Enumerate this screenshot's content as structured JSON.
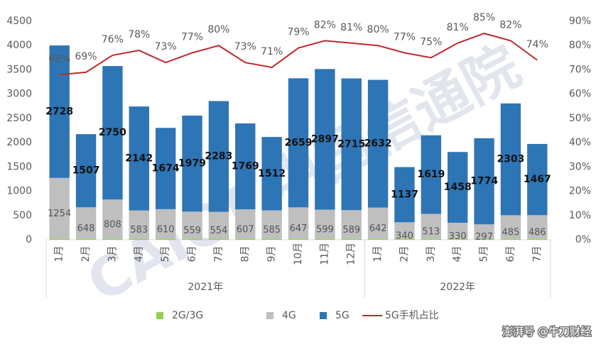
{
  "chart_data": {
    "type": "bar",
    "categories": [
      "1月",
      "2月",
      "3月",
      "4月",
      "5月",
      "6月",
      "7月",
      "8月",
      "9月",
      "10月",
      "11月",
      "12月",
      "1月",
      "2月",
      "3月",
      "4月",
      "5月",
      "6月",
      "7月"
    ],
    "category_groups": [
      "2021年",
      "2021年",
      "2021年",
      "2021年",
      "2021年",
      "2021年",
      "2021年",
      "2021年",
      "2021年",
      "2021年",
      "2021年",
      "2021年",
      "2022年",
      "2022年",
      "2022年",
      "2022年",
      "2022年",
      "2022年",
      "2022年"
    ],
    "series": [
      {
        "name": "2G/3G",
        "color": "#92d050",
        "values": [
          20,
          20,
          20,
          20,
          20,
          20,
          20,
          20,
          20,
          20,
          20,
          20,
          20,
          20,
          20,
          20,
          20,
          20,
          20
        ]
      },
      {
        "name": "4G",
        "color": "#bfbfbf",
        "values": [
          1254,
          648,
          808,
          583,
          610,
          559,
          554,
          607,
          585,
          647,
          599,
          589,
          642,
          340,
          513,
          330,
          297,
          485,
          486
        ]
      },
      {
        "name": "5G",
        "color": "#2e75b6",
        "values": [
          2728,
          1507,
          2750,
          2142,
          1674,
          1979,
          2283,
          1769,
          1512,
          2659,
          2897,
          2715,
          2632,
          1137,
          1619,
          1458,
          1774,
          2303,
          1467
        ]
      },
      {
        "name": "5G手机占比",
        "color": "#c0282d",
        "axis": "y2",
        "type": "line",
        "values": [
          68,
          69,
          76,
          78,
          73,
          77,
          80,
          73,
          71,
          79,
          82,
          81,
          80,
          77,
          75,
          81,
          85,
          82,
          74
        ],
        "value_labels": [
          "68%",
          "69%",
          "76%",
          "78%",
          "73%",
          "77%",
          "80%",
          "73%",
          "71%",
          "79%",
          "82%",
          "81%",
          "80%",
          "77%",
          "75%",
          "81%",
          "85%",
          "82%",
          "74%"
        ]
      }
    ],
    "ylim": [
      0,
      4500
    ],
    "yticks": [
      0,
      500,
      1000,
      1500,
      2000,
      2500,
      3000,
      3500,
      4000,
      4500
    ],
    "y2lim": [
      0,
      90
    ],
    "y2ticks": [
      {
        "value": 0,
        "label": "0%"
      },
      {
        "value": 10,
        "label": "10%"
      },
      {
        "value": 20,
        "label": "20%"
      },
      {
        "value": 30,
        "label": "30%"
      },
      {
        "value": 40,
        "label": "40%"
      },
      {
        "value": 50,
        "label": "50%"
      },
      {
        "value": 60,
        "label": "60%"
      },
      {
        "value": 70,
        "label": "70%"
      },
      {
        "value": 80,
        "label": "80%"
      },
      {
        "value": 90,
        "label": "90%"
      }
    ],
    "grid": false,
    "legend": "bottom"
  },
  "watermark": "CAICT 中国信通院",
  "source": "澎湃号 @牛刀财经"
}
